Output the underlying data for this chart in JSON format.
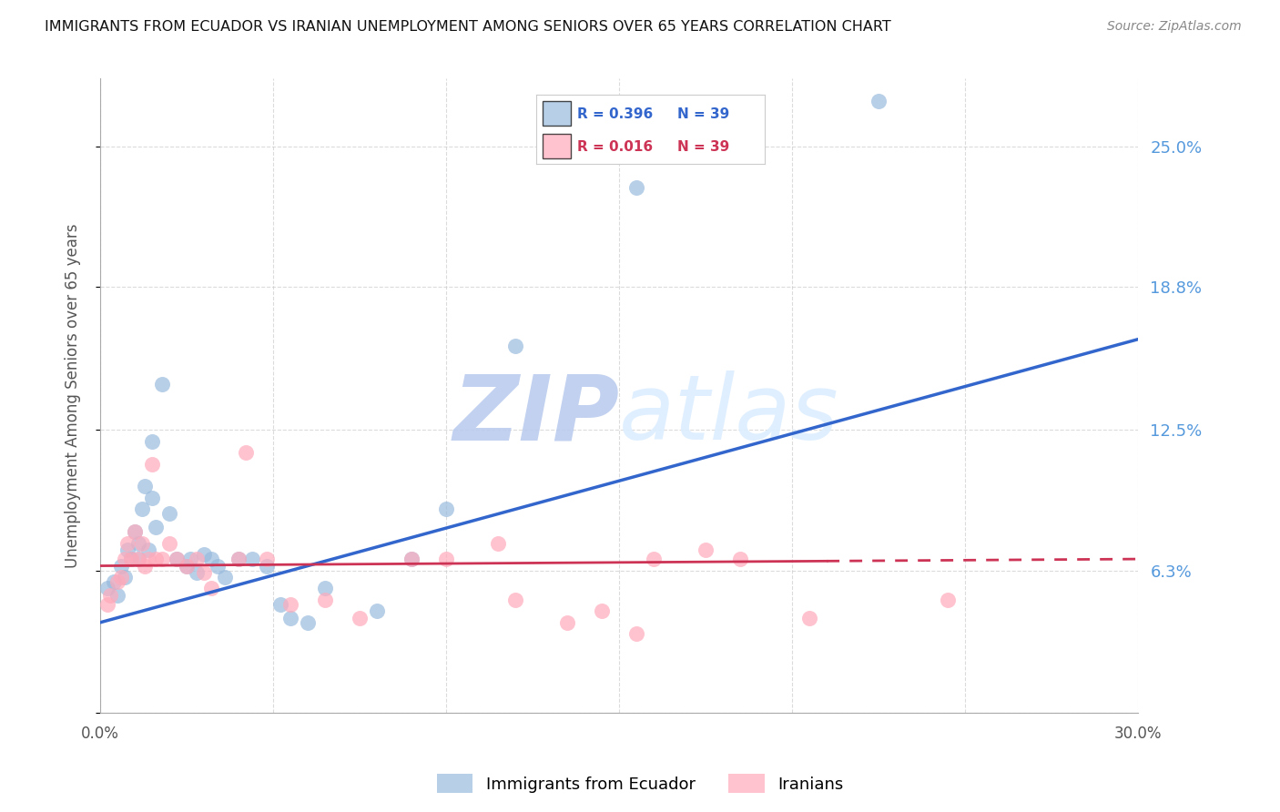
{
  "title": "IMMIGRANTS FROM ECUADOR VS IRANIAN UNEMPLOYMENT AMONG SENIORS OVER 65 YEARS CORRELATION CHART",
  "source": "Source: ZipAtlas.com",
  "ylabel": "Unemployment Among Seniors over 65 years",
  "ylim": [
    0.0,
    0.28
  ],
  "xlim": [
    0.0,
    0.3
  ],
  "blue_R": "R = 0.396",
  "blue_N": "N = 39",
  "pink_R": "R = 0.016",
  "pink_N": "N = 39",
  "legend_label_blue": "Immigrants from Ecuador",
  "legend_label_pink": "Iranians",
  "blue_color": "#99BBDD",
  "pink_color": "#FFAABB",
  "trend_blue_color": "#3366CC",
  "trend_pink_color": "#CC3355",
  "grid_color": "#CCCCCC",
  "background_color": "#FFFFFF",
  "blue_scatter_x": [
    0.002,
    0.004,
    0.005,
    0.006,
    0.007,
    0.008,
    0.009,
    0.01,
    0.011,
    0.011,
    0.012,
    0.013,
    0.014,
    0.015,
    0.015,
    0.016,
    0.018,
    0.02,
    0.022,
    0.025,
    0.026,
    0.028,
    0.03,
    0.032,
    0.034,
    0.036,
    0.04,
    0.044,
    0.048,
    0.052,
    0.055,
    0.06,
    0.065,
    0.08,
    0.09,
    0.1,
    0.12,
    0.155,
    0.225
  ],
  "blue_scatter_y": [
    0.055,
    0.058,
    0.052,
    0.065,
    0.06,
    0.072,
    0.068,
    0.08,
    0.068,
    0.075,
    0.09,
    0.1,
    0.072,
    0.12,
    0.095,
    0.082,
    0.145,
    0.088,
    0.068,
    0.065,
    0.068,
    0.062,
    0.07,
    0.068,
    0.065,
    0.06,
    0.068,
    0.068,
    0.065,
    0.048,
    0.042,
    0.04,
    0.055,
    0.045,
    0.068,
    0.09,
    0.162,
    0.232,
    0.27
  ],
  "pink_scatter_x": [
    0.002,
    0.003,
    0.005,
    0.006,
    0.007,
    0.008,
    0.009,
    0.01,
    0.011,
    0.012,
    0.013,
    0.014,
    0.015,
    0.016,
    0.018,
    0.02,
    0.022,
    0.025,
    0.028,
    0.03,
    0.032,
    0.04,
    0.042,
    0.048,
    0.055,
    0.065,
    0.075,
    0.09,
    0.1,
    0.115,
    0.12,
    0.135,
    0.145,
    0.155,
    0.16,
    0.175,
    0.185,
    0.205,
    0.245
  ],
  "pink_scatter_y": [
    0.048,
    0.052,
    0.058,
    0.06,
    0.068,
    0.075,
    0.068,
    0.08,
    0.068,
    0.075,
    0.065,
    0.068,
    0.11,
    0.068,
    0.068,
    0.075,
    0.068,
    0.065,
    0.068,
    0.062,
    0.055,
    0.068,
    0.115,
    0.068,
    0.048,
    0.05,
    0.042,
    0.068,
    0.068,
    0.075,
    0.05,
    0.04,
    0.045,
    0.035,
    0.068,
    0.072,
    0.068,
    0.042,
    0.05
  ],
  "watermark_text": "ZIPatlas",
  "watermark_color": "#DDEEFF",
  "ytick_positions": [
    0.0,
    0.063,
    0.125,
    0.188,
    0.25
  ],
  "xtick_positions": [
    0.0,
    0.05,
    0.1,
    0.15,
    0.2,
    0.25,
    0.3
  ],
  "blue_trend_x": [
    0.0,
    0.3
  ],
  "blue_trend_y": [
    0.04,
    0.165
  ],
  "pink_trend_x": [
    0.0,
    0.3
  ],
  "pink_trend_y": [
    0.065,
    0.068
  ]
}
